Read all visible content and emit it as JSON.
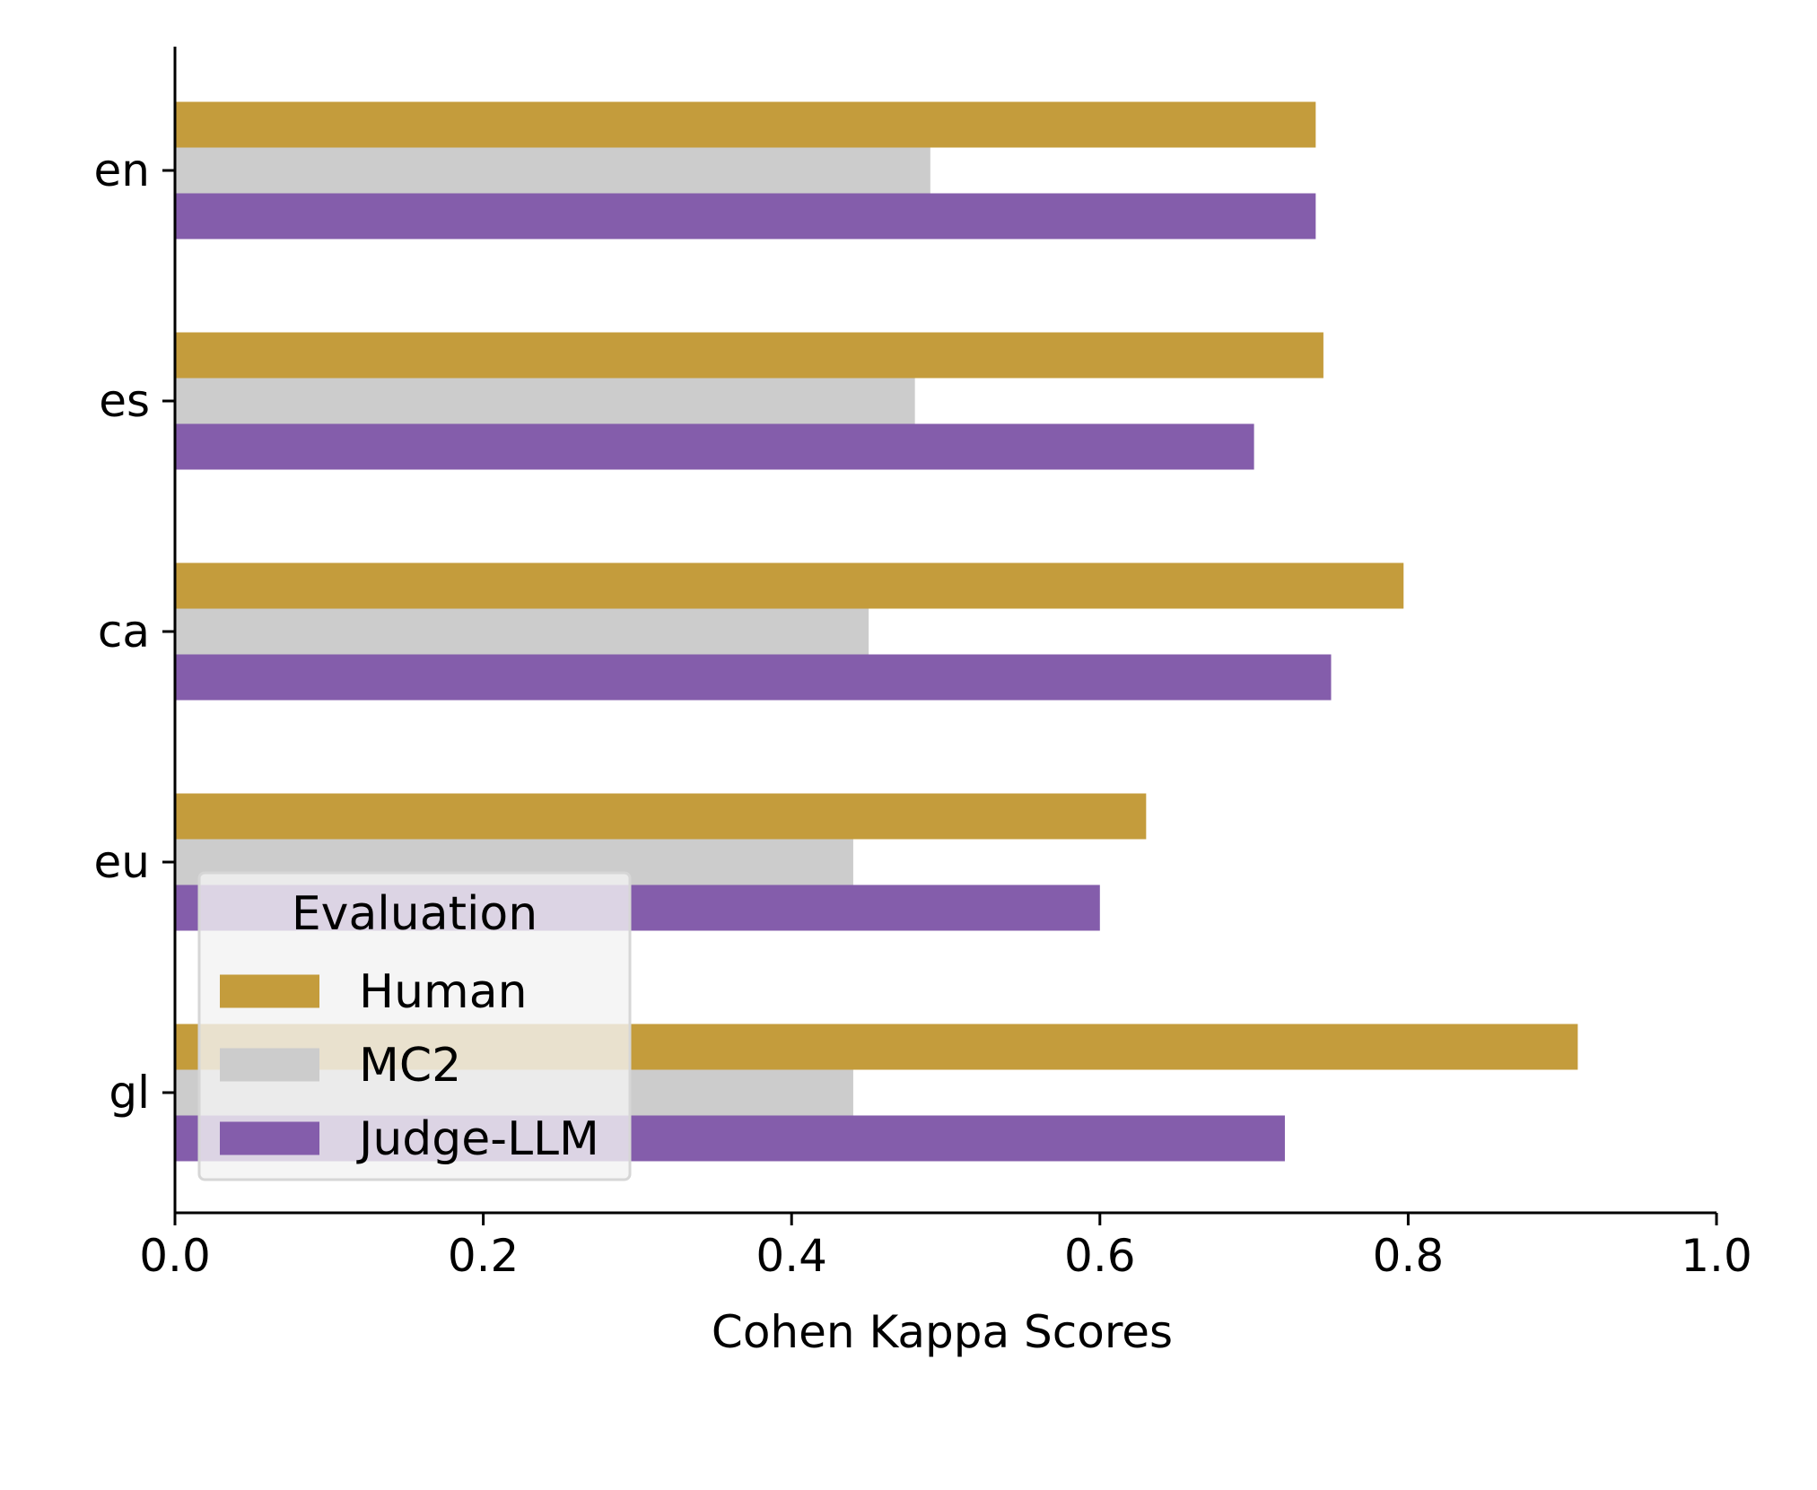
{
  "chart_data": {
    "type": "bar",
    "orientation": "horizontal",
    "categories": [
      "en",
      "es",
      "ca",
      "eu",
      "gl"
    ],
    "series": [
      {
        "name": "Human",
        "values": [
          0.74,
          0.745,
          0.797,
          0.63,
          0.91
        ],
        "color": "#c49c3c"
      },
      {
        "name": "MC2",
        "values": [
          0.49,
          0.48,
          0.45,
          0.44,
          0.44
        ],
        "color": "#cccccc"
      },
      {
        "name": "Judge-LLM",
        "values": [
          0.74,
          0.7,
          0.75,
          0.6,
          0.72
        ],
        "color": "#845dab"
      }
    ],
    "xlabel": "Cohen Kappa Scores",
    "ylabel": "",
    "xlim": [
      0,
      1.0
    ],
    "xticks": [
      "0.0",
      "0.2",
      "0.4",
      "0.6",
      "0.8",
      "1.0"
    ],
    "grid": false,
    "legend": {
      "title": "Evaluation",
      "placement": "lower-left"
    }
  }
}
